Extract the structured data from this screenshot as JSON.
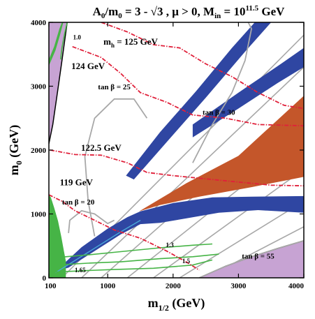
{
  "chart_data": {
    "type": "contour",
    "title_parts": {
      "lead": "A",
      "lead_sub": "0",
      "slash": "/m",
      "slash_sub": "0",
      "rest": " = 3 - √3 ,  μ > 0, M",
      "in_sub": "in",
      "eq": " = 10",
      "exp": "11.5",
      "unit": " GeV"
    },
    "xlabel_parts": {
      "main": "m",
      "sub": "1/2",
      "unit": " (GeV)"
    },
    "ylabel_parts": {
      "main": "m",
      "sub": "0",
      "unit": " (GeV)"
    },
    "xlim": [
      100,
      4000
    ],
    "ylim": [
      0,
      4000
    ],
    "x_ticks": [
      {
        "value": 100,
        "label": "100"
      },
      {
        "value": 1000,
        "label": "1000"
      },
      {
        "value": 2000,
        "label": "2000"
      },
      {
        "value": 3000,
        "label": "3000"
      },
      {
        "value": 4000,
        "label": "4000"
      }
    ],
    "y_ticks": [
      {
        "value": 0,
        "label": "0"
      },
      {
        "value": 1000,
        "label": "1000"
      },
      {
        "value": 2000,
        "label": "2000"
      },
      {
        "value": 3000,
        "label": "3000"
      },
      {
        "value": 4000,
        "label": "4000"
      }
    ],
    "colors": {
      "purple": "#c7a3d3",
      "orange": "#c4562a",
      "blue": "#2f46a2",
      "green": "#46b446",
      "gray": "#a8a8a8",
      "red": "#e0203a",
      "cyan": "#4aa8d8",
      "black": "#000000"
    },
    "regions": {
      "purple_top_left": [
        [
          100,
          4000
        ],
        [
          100,
          2100
        ],
        [
          160,
          2400
        ],
        [
          230,
          2900
        ],
        [
          300,
          3400
        ],
        [
          380,
          4000
        ]
      ],
      "purple_bottom_right": [
        [
          2400,
          0
        ],
        [
          4000,
          0
        ],
        [
          4000,
          580
        ],
        [
          3600,
          460
        ],
        [
          3200,
          330
        ],
        [
          2800,
          180
        ]
      ],
      "orange_wedge": [
        [
          1480,
          1040
        ],
        [
          2200,
          1480
        ],
        [
          3000,
          1910
        ],
        [
          4000,
          2850
        ],
        [
          4000,
          1580
        ],
        [
          3200,
          1420
        ],
        [
          2400,
          1270
        ],
        [
          1800,
          1140
        ]
      ],
      "blue_band_middle": [
        [
          1500,
          1040
        ],
        [
          2000,
          1170
        ],
        [
          2600,
          1260
        ],
        [
          3200,
          1270
        ],
        [
          4000,
          1280
        ],
        [
          4000,
          1020
        ],
        [
          3300,
          1060
        ],
        [
          2700,
          1020
        ],
        [
          2200,
          930
        ],
        [
          1800,
          860
        ],
        [
          1500,
          840
        ]
      ],
      "blue_band_upper": [
        [
          1280,
          1600
        ],
        [
          1800,
          2280
        ],
        [
          2350,
          2920
        ],
        [
          2900,
          3600
        ],
        [
          3250,
          4000
        ],
        [
          3500,
          4000
        ],
        [
          3100,
          3540
        ],
        [
          2500,
          2820
        ],
        [
          1950,
          2180
        ],
        [
          1400,
          1540
        ]
      ],
      "blue_band_upper_right": [
        [
          2300,
          2400
        ],
        [
          3000,
          2900
        ],
        [
          3650,
          3350
        ],
        [
          4000,
          3600
        ],
        [
          4000,
          3300
        ],
        [
          3600,
          3050
        ],
        [
          3000,
          2650
        ],
        [
          2300,
          2200
        ]
      ],
      "blue_band_low_wedge": [
        [
          200,
          100
        ],
        [
          600,
          480
        ],
        [
          1000,
          770
        ],
        [
          1300,
          950
        ],
        [
          1500,
          1040
        ],
        [
          1500,
          840
        ],
        [
          1200,
          680
        ],
        [
          800,
          420
        ],
        [
          400,
          160
        ]
      ],
      "green_strip_left": [
        [
          100,
          0
        ],
        [
          360,
          0
        ],
        [
          360,
          260
        ],
        [
          330,
          420
        ],
        [
          290,
          640
        ],
        [
          240,
          890
        ],
        [
          180,
          1100
        ],
        [
          130,
          1260
        ],
        [
          100,
          1300
        ]
      ],
      "green_strip_top_left": [
        [
          100,
          3420
        ],
        [
          180,
          3620
        ],
        [
          260,
          3900
        ],
        [
          300,
          4000
        ],
        [
          320,
          4000
        ],
        [
          270,
          3800
        ],
        [
          200,
          3560
        ],
        [
          100,
          3320
        ]
      ]
    },
    "green_curves": [
      {
        "label": "1.65",
        "points": [
          [
            180,
            90
          ],
          [
            600,
            110
          ],
          [
            1100,
            130
          ],
          [
            1700,
            150
          ],
          [
            2300,
            200
          ],
          [
            2600,
            280
          ]
        ]
      },
      {
        "label": "1.5",
        "points": [
          [
            200,
            200
          ],
          [
            700,
            230
          ],
          [
            1200,
            250
          ],
          [
            1800,
            300
          ],
          [
            2300,
            330
          ],
          [
            2700,
            370
          ]
        ]
      },
      {
        "label": "1.3",
        "points": [
          [
            250,
            320
          ],
          [
            700,
            360
          ],
          [
            1200,
            410
          ],
          [
            1800,
            470
          ],
          [
            2300,
            510
          ],
          [
            2600,
            530
          ]
        ]
      },
      {
        "label": "1.0",
        "points": [
          [
            280,
            3420
          ],
          [
            300,
            3600
          ],
          [
            340,
            3820
          ],
          [
            380,
            4000
          ]
        ]
      }
    ],
    "higgs_contours": [
      {
        "label": "125 GeV",
        "points": [
          [
            900,
            4000
          ],
          [
            1300,
            3850
          ],
          [
            1700,
            3650
          ],
          [
            2100,
            3600
          ],
          [
            2500,
            3350
          ],
          [
            2900,
            3150
          ],
          [
            3300,
            2900
          ],
          [
            3700,
            2700
          ],
          [
            4000,
            2650
          ]
        ]
      },
      {
        "label": "124 GeV",
        "points": [
          [
            460,
            3620
          ],
          [
            900,
            3450
          ],
          [
            1200,
            3200
          ],
          [
            1500,
            2900
          ],
          [
            1900,
            2750
          ],
          [
            2300,
            2550
          ],
          [
            2800,
            2500
          ],
          [
            3300,
            2400
          ],
          [
            4000,
            2380
          ]
        ]
      },
      {
        "label": "122.5 GeV",
        "points": [
          [
            120,
            2000
          ],
          [
            500,
            1930
          ],
          [
            900,
            1920
          ],
          [
            1300,
            1800
          ],
          [
            1600,
            1650
          ],
          [
            2000,
            1600
          ],
          [
            2500,
            1550
          ],
          [
            3000,
            1500
          ],
          [
            3500,
            1450
          ],
          [
            4000,
            1440
          ]
        ]
      },
      {
        "label": "119 GeV",
        "points": [
          [
            100,
            1300
          ],
          [
            300,
            1200
          ],
          [
            500,
            1050
          ],
          [
            800,
            900
          ],
          [
            1100,
            750
          ],
          [
            1500,
            620
          ],
          [
            1900,
            420
          ],
          [
            2200,
            250
          ],
          [
            2400,
            120
          ]
        ]
      }
    ],
    "tanb_contours": [
      {
        "label": "tan β = 25",
        "points": [
          [
            800,
            650
          ],
          [
            700,
            1200
          ],
          [
            650,
            1900
          ],
          [
            800,
            2500
          ],
          [
            1100,
            2800
          ],
          [
            1400,
            2800
          ],
          [
            1600,
            2500
          ]
        ]
      },
      {
        "label": "tan β = 30",
        "points": [
          [
            2300,
            1800
          ],
          [
            2600,
            2400
          ],
          [
            2900,
            2900
          ],
          [
            3100,
            3400
          ],
          [
            3200,
            3900
          ],
          [
            3150,
            4000
          ]
        ]
      },
      {
        "label": "tan β = 20",
        "points": [
          [
            400,
            700
          ],
          [
            420,
            900
          ],
          [
            600,
            1050
          ],
          [
            800,
            1000
          ],
          [
            1000,
            850
          ],
          [
            1100,
            900
          ]
        ]
      },
      {
        "label": "tan β = 55",
        "points": [
          [
            2400,
            0
          ],
          [
            2800,
            180
          ],
          [
            3200,
            330
          ],
          [
            3600,
            460
          ],
          [
            4000,
            580
          ]
        ]
      }
    ],
    "gray_parallel_lines": [
      [
        [
          300,
          0
        ],
        [
          4000,
          3800
        ]
      ],
      [
        [
          600,
          0
        ],
        [
          4000,
          3300
        ]
      ],
      [
        [
          900,
          0
        ],
        [
          4000,
          2800
        ]
      ],
      [
        [
          1300,
          0
        ],
        [
          4000,
          2200
        ]
      ],
      [
        [
          1700,
          0
        ],
        [
          4000,
          1700
        ]
      ],
      [
        [
          2100,
          0
        ],
        [
          4000,
          1200
        ]
      ],
      [
        [
          2500,
          0
        ],
        [
          4000,
          800
        ]
      ],
      [
        [
          2900,
          0
        ],
        [
          4000,
          420
        ]
      ],
      [
        [
          3300,
          0
        ],
        [
          4000,
          200
        ]
      ]
    ],
    "annotations": [
      {
        "text": "m",
        "sub": "h",
        "rest": "  = 125 GeV",
        "x": 1350,
        "y": 3650,
        "size": "lg"
      },
      {
        "text": "124 GeV",
        "x": 700,
        "y": 3270,
        "size": "lg"
      },
      {
        "text": "tan β = 25",
        "x": 1100,
        "y": 2950,
        "size": "md"
      },
      {
        "text": "tan β = 30",
        "x": 2700,
        "y": 2550,
        "size": "md"
      },
      {
        "text": "122.5 GeV",
        "x": 900,
        "y": 1990,
        "size": "lg"
      },
      {
        "text": "119 GeV",
        "x": 520,
        "y": 1450,
        "size": "lg"
      },
      {
        "text": "tan β = 20",
        "x": 550,
        "y": 1150,
        "size": "md"
      },
      {
        "text": "tan β = 55",
        "x": 3300,
        "y": 300,
        "size": "md"
      },
      {
        "text": "1.0",
        "x": 530,
        "y": 3730,
        "size": "sm"
      },
      {
        "text": "1.3",
        "x": 1950,
        "y": 480,
        "size": "sm"
      },
      {
        "text": "1.5",
        "x": 2200,
        "y": 230,
        "size": "sm"
      },
      {
        "text": "1.65",
        "x": 580,
        "y": 90,
        "size": "sm"
      }
    ]
  }
}
